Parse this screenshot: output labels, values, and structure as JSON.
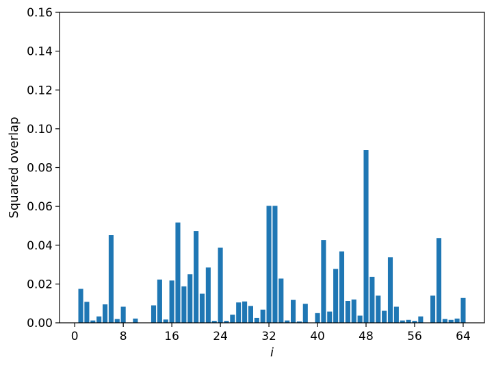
{
  "chart_data": {
    "type": "bar",
    "title": "",
    "xlabel": "i",
    "ylabel": "Squared overlap",
    "xlim": [
      -2.5,
      67.5
    ],
    "ylim": [
      0,
      0.16
    ],
    "xticks": [
      0,
      8,
      16,
      24,
      32,
      40,
      48,
      56,
      64
    ],
    "xtick_labels": [
      "0",
      "8",
      "16",
      "24",
      "32",
      "40",
      "48",
      "56",
      "64"
    ],
    "yticks": [
      0,
      0.02,
      0.04,
      0.06,
      0.08,
      0.1,
      0.12,
      0.14,
      0.16
    ],
    "ytick_labels": [
      "0.00",
      "0.02",
      "0.04",
      "0.06",
      "0.08",
      "0.10",
      "0.12",
      "0.14",
      "0.16"
    ],
    "grid": false,
    "bar_color": "#1f77b4",
    "x": [
      0,
      1,
      2,
      3,
      4,
      5,
      6,
      7,
      8,
      9,
      10,
      11,
      12,
      13,
      14,
      15,
      16,
      17,
      18,
      19,
      20,
      21,
      22,
      23,
      24,
      25,
      26,
      27,
      28,
      29,
      30,
      31,
      32,
      33,
      34,
      35,
      36,
      37,
      38,
      39,
      40,
      41,
      42,
      43,
      44,
      45,
      46,
      47,
      48,
      49,
      50,
      51,
      52,
      53,
      54,
      55,
      56,
      57,
      58,
      59,
      60,
      61,
      62,
      63,
      64
    ],
    "values": [
      0.0,
      0.0175,
      0.0108,
      0.0012,
      0.0033,
      0.0095,
      0.0452,
      0.002,
      0.0083,
      0.0002,
      0.0022,
      0.0,
      0.0,
      0.009,
      0.0223,
      0.0017,
      0.0218,
      0.0517,
      0.0188,
      0.025,
      0.0473,
      0.015,
      0.0285,
      0.001,
      0.0387,
      0.001,
      0.0042,
      0.0105,
      0.011,
      0.0087,
      0.0025,
      0.0068,
      0.0603,
      0.0603,
      0.0228,
      0.0012,
      0.0118,
      0.0007,
      0.0098,
      0.0,
      0.005,
      0.0427,
      0.0058,
      0.0278,
      0.0368,
      0.0113,
      0.012,
      0.0037,
      0.089,
      0.0237,
      0.014,
      0.0062,
      0.0338,
      0.0083,
      0.0012,
      0.0015,
      0.001,
      0.0033,
      0.0,
      0.014,
      0.0437,
      0.002,
      0.0015,
      0.0022,
      0.0128
    ]
  }
}
